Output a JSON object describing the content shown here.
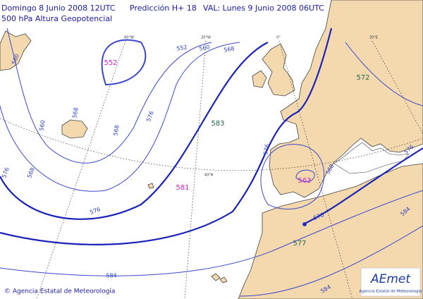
{
  "header": {
    "run": "Domingo 8 Junio 2008 12UTC",
    "forecast": "Predicción H+ 18",
    "valid": "VAL: Lunes 9 Junio 2008 06UTC",
    "field": "500 hPa  Altura Geopotencial"
  },
  "centers": [
    {
      "label": "552",
      "kind": "low"
    },
    {
      "label": "583",
      "kind": "high"
    },
    {
      "label": "572",
      "kind": "high"
    },
    {
      "label": "581",
      "kind": "low"
    },
    {
      "label": "563",
      "kind": "low"
    },
    {
      "label": "577",
      "kind": "high"
    }
  ],
  "contour_labels": [
    "560",
    "552",
    "560",
    "568",
    "576",
    "568",
    "560",
    "568",
    "576",
    "576",
    "568",
    "576",
    "584",
    "576",
    "568",
    "576",
    "584",
    "584"
  ],
  "graticule_labels": [
    "60°W",
    "20°W",
    "0°",
    "20°E",
    "40°N"
  ],
  "footer": "© Agencia Estatal de Meteorología",
  "logo": {
    "name": "AEmet",
    "subtitle": "Agencia Estatal de Meteorología"
  }
}
